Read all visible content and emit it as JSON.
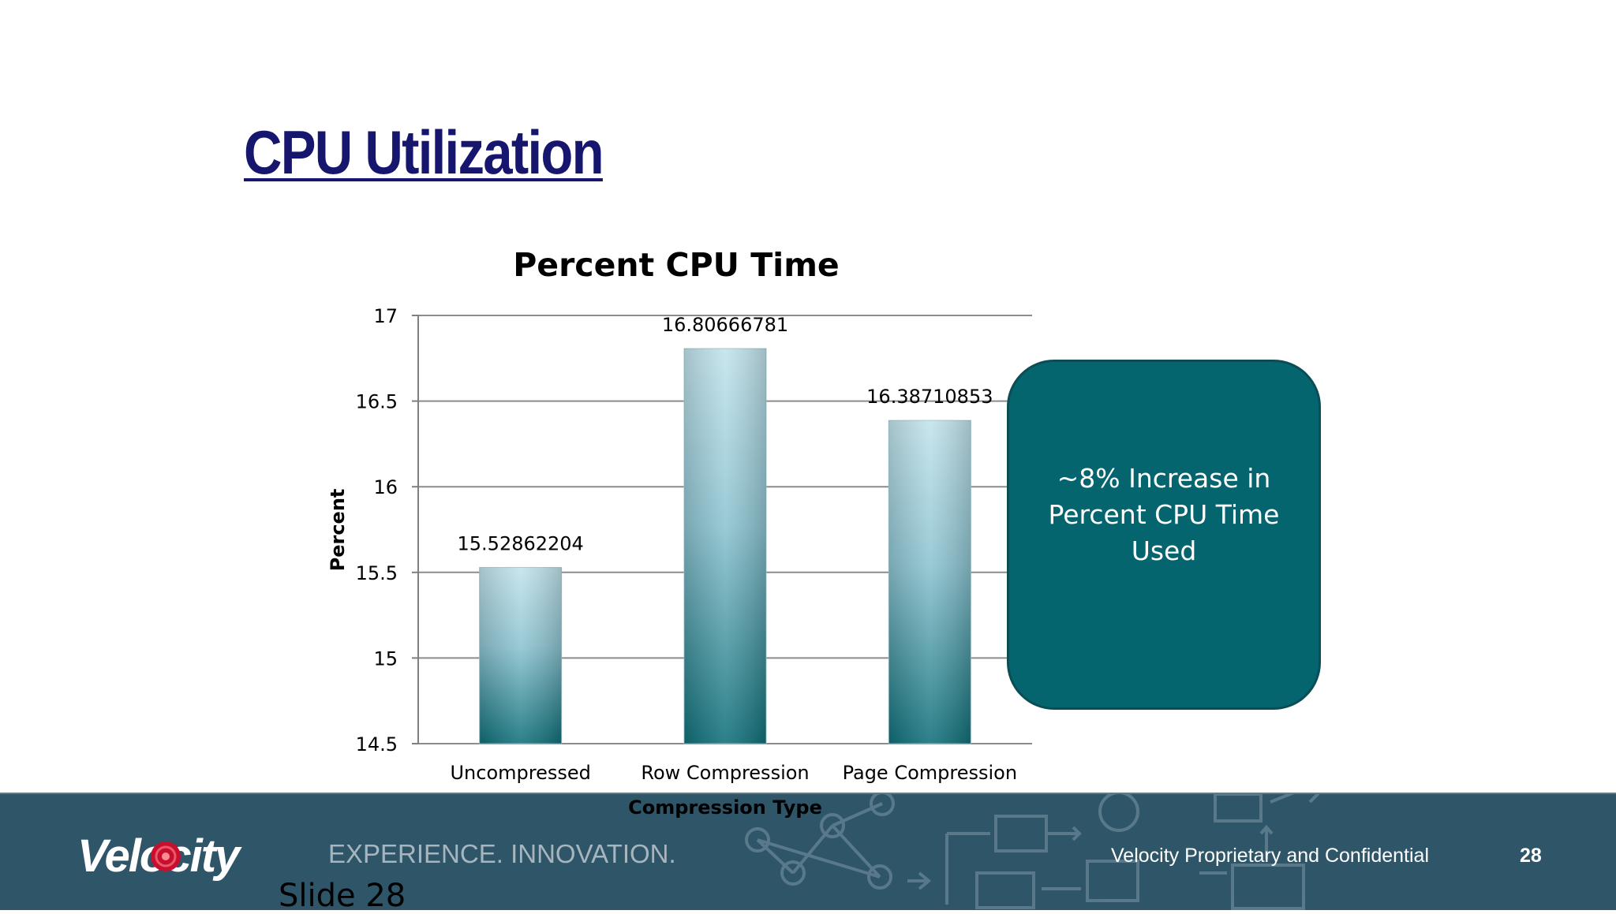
{
  "slide": {
    "title": "CPU Utilization",
    "page_number": "28",
    "label": "Slide 28"
  },
  "callout": {
    "text": "~8% Increase in Percent CPU Time Used"
  },
  "footer": {
    "logo_text": "Velocity",
    "tagline": "EXPERIENCE. INNOVATION.",
    "confidential": "Velocity Proprietary and Confidential"
  },
  "colors": {
    "title": "#16166e",
    "callout_fill": "#05656f",
    "bar_top": "#c2e3ec",
    "bar_bottom": "#0f6f79",
    "footer_bg": "#2e5568"
  },
  "chart_data": {
    "type": "bar",
    "title": "Percent CPU Time",
    "xlabel": "Compression Type",
    "ylabel": "Percent",
    "categories": [
      "Uncompressed",
      "Row Compression",
      "Page Compression"
    ],
    "values": [
      15.52862204,
      16.80666781,
      16.38710853
    ],
    "value_labels": [
      "15.52862204",
      "16.80666781",
      "16.38710853"
    ],
    "ylim": [
      14.5,
      17
    ],
    "yticks": [
      14.5,
      15,
      15.5,
      16,
      16.5,
      17
    ],
    "ytick_labels": [
      "14.5",
      "15",
      "15.5",
      "16",
      "16.5",
      "17"
    ],
    "grid": true,
    "legend": "none"
  }
}
